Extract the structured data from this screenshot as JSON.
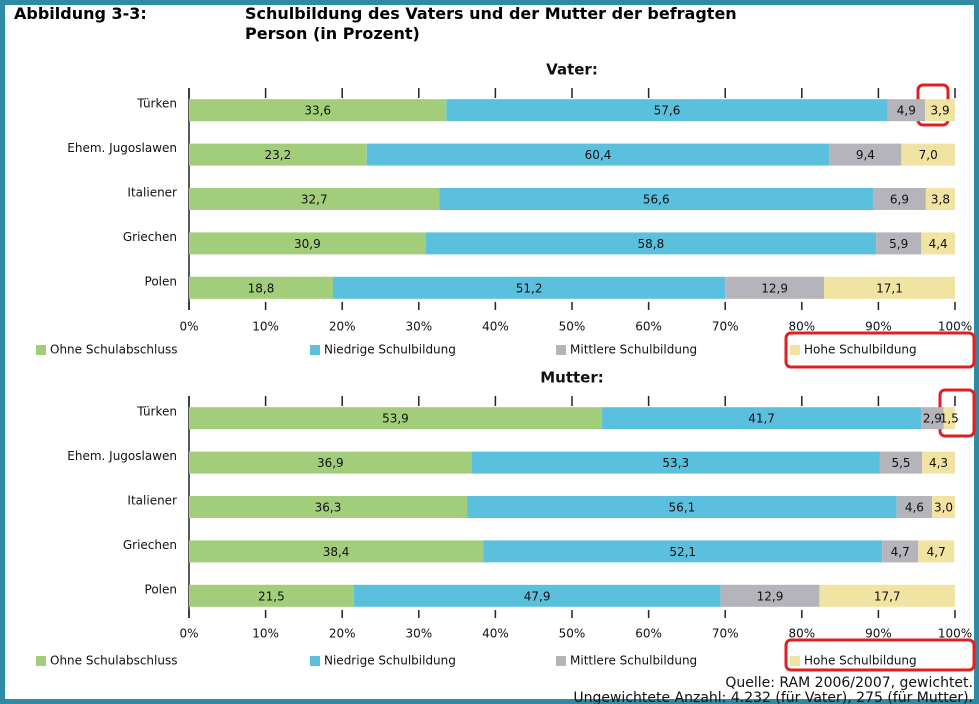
{
  "figure": {
    "label": "Abbildung 3-3:",
    "title": "Schulbildung des Vaters und der Mutter der befragten Person (in Prozent)",
    "source": "Quelle: RAM 2006/2007, gewichtet.",
    "note": "Ungewichtete Anzahl: 4.232 (für Vater), 275 (für Mutter)."
  },
  "chart_data": [
    {
      "type": "bar",
      "orientation": "horizontal",
      "stacked": true,
      "title": "Vater:",
      "categories": [
        "Türken",
        "Ehem. Jugoslawen",
        "Italiener",
        "Griechen",
        "Polen"
      ],
      "series": [
        {
          "name": "Ohne Schulabschluss",
          "color": "#a2cd7a",
          "values": [
            33.6,
            23.2,
            32.7,
            30.9,
            18.8
          ],
          "value_labels": [
            "33,6",
            "23,2",
            "32,7",
            "30,9",
            "18,8"
          ]
        },
        {
          "name": "Niedrige Schulbildung",
          "color": "#5bc0de",
          "values": [
            57.6,
            60.4,
            56.6,
            58.8,
            51.2
          ],
          "value_labels": [
            "57,6",
            "60,4",
            "56,6",
            "58,8",
            "51,2"
          ]
        },
        {
          "name": "Mittlere Schulbildung",
          "color": "#b4b4ba",
          "values": [
            4.9,
            9.4,
            6.9,
            5.9,
            12.9
          ],
          "value_labels": [
            "4,9",
            "9,4",
            "6,9",
            "5,9",
            "12,9"
          ]
        },
        {
          "name": "Hohe Schulbildung",
          "color": "#f1e4a2",
          "values": [
            3.9,
            7.0,
            3.8,
            4.4,
            17.1
          ],
          "value_labels": [
            "3,9",
            "7,0",
            "3,8",
            "4,4",
            "17,1"
          ]
        }
      ],
      "xlim": [
        0,
        100
      ],
      "xticks": [
        {
          "value": 0,
          "label": "0%"
        },
        {
          "value": 10,
          "label": "10%"
        },
        {
          "value": 20,
          "label": "20%"
        },
        {
          "value": 30,
          "label": "30%"
        },
        {
          "value": 40,
          "label": "40%"
        },
        {
          "value": 50,
          "label": "50%"
        },
        {
          "value": 60,
          "label": "60%"
        },
        {
          "value": 70,
          "label": "70%"
        },
        {
          "value": 80,
          "label": "80%"
        },
        {
          "value": 90,
          "label": "90%"
        },
        {
          "value": 100,
          "label": "100%"
        }
      ],
      "legend": "bottom"
    },
    {
      "type": "bar",
      "orientation": "horizontal",
      "stacked": true,
      "title": "Mutter:",
      "categories": [
        "Türken",
        "Ehem. Jugoslawen",
        "Italiener",
        "Griechen",
        "Polen"
      ],
      "series": [
        {
          "name": "Ohne Schulabschluss",
          "color": "#a2cd7a",
          "values": [
            53.9,
            36.9,
            36.3,
            38.4,
            21.5
          ],
          "value_labels": [
            "53,9",
            "36,9",
            "36,3",
            "38,4",
            "21,5"
          ]
        },
        {
          "name": "Niedrige Schulbildung",
          "color": "#5bc0de",
          "values": [
            41.7,
            53.3,
            56.1,
            52.1,
            47.9
          ],
          "value_labels": [
            "41,7",
            "53,3",
            "56,1",
            "52,1",
            "47,9"
          ]
        },
        {
          "name": "Mittlere Schulbildung",
          "color": "#b4b4ba",
          "values": [
            2.9,
            5.5,
            4.6,
            4.7,
            12.9
          ],
          "value_labels": [
            "2,9",
            "5,5",
            "4,6",
            "4,7",
            "12,9"
          ]
        },
        {
          "name": "Hohe Schulbildung",
          "color": "#f1e4a2",
          "values": [
            1.5,
            4.3,
            3.0,
            4.7,
            17.7
          ],
          "value_labels": [
            "1,5",
            "4,3",
            "3,0",
            "4,7",
            "17,7"
          ]
        }
      ],
      "xlim": [
        0,
        100
      ],
      "xticks": [
        {
          "value": 0,
          "label": "0%"
        },
        {
          "value": 10,
          "label": "10%"
        },
        {
          "value": 20,
          "label": "20%"
        },
        {
          "value": 30,
          "label": "30%"
        },
        {
          "value": 40,
          "label": "40%"
        },
        {
          "value": 50,
          "label": "50%"
        },
        {
          "value": 60,
          "label": "60%"
        },
        {
          "value": 70,
          "label": "70%"
        },
        {
          "value": 80,
          "label": "80%"
        },
        {
          "value": 90,
          "label": "90%"
        },
        {
          "value": 100,
          "label": "100%"
        }
      ],
      "legend": "bottom"
    }
  ]
}
